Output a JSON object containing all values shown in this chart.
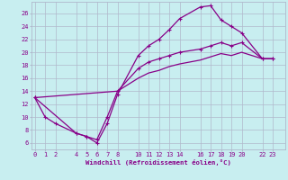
{
  "xlabel": "Windchill (Refroidissement éolien,°C)",
  "bg_color": "#c8eef0",
  "line_color": "#880088",
  "grid_color": "#b0b8cc",
  "x_ticks": [
    0,
    1,
    2,
    4,
    5,
    6,
    7,
    8,
    10,
    11,
    12,
    13,
    14,
    16,
    17,
    18,
    19,
    20,
    22,
    23
  ],
  "y_ticks": [
    6,
    8,
    10,
    12,
    14,
    16,
    18,
    20,
    22,
    24,
    26
  ],
  "xlim": [
    -0.3,
    24.2
  ],
  "ylim": [
    5.0,
    27.8
  ],
  "line1_x": [
    0,
    1,
    2,
    4,
    5,
    6,
    7,
    8,
    10,
    11,
    12,
    13,
    14,
    16,
    17,
    18,
    19,
    20,
    22,
    23
  ],
  "line1_y": [
    13,
    10,
    9,
    7.5,
    7,
    6,
    9,
    13.5,
    19.5,
    21,
    22,
    23.5,
    25.2,
    27.0,
    27.2,
    25.0,
    24.0,
    23.0,
    19.0,
    19.0
  ],
  "line2_x": [
    0,
    4,
    5,
    6,
    7,
    8,
    10,
    11,
    12,
    13,
    14,
    16,
    17,
    18,
    19,
    20,
    22,
    23
  ],
  "line2_y": [
    13,
    7.5,
    7,
    6.5,
    10,
    14,
    17.5,
    18.5,
    19.0,
    19.5,
    20.0,
    20.5,
    21.0,
    21.5,
    21.0,
    21.5,
    19.0,
    19.0
  ],
  "line3_x": [
    0,
    8,
    10,
    11,
    12,
    13,
    14,
    16,
    17,
    18,
    19,
    20,
    22,
    23
  ],
  "line3_y": [
    13,
    14,
    16.0,
    16.8,
    17.2,
    17.8,
    18.2,
    18.8,
    19.3,
    19.8,
    19.5,
    20.0,
    19.0,
    19.0
  ]
}
